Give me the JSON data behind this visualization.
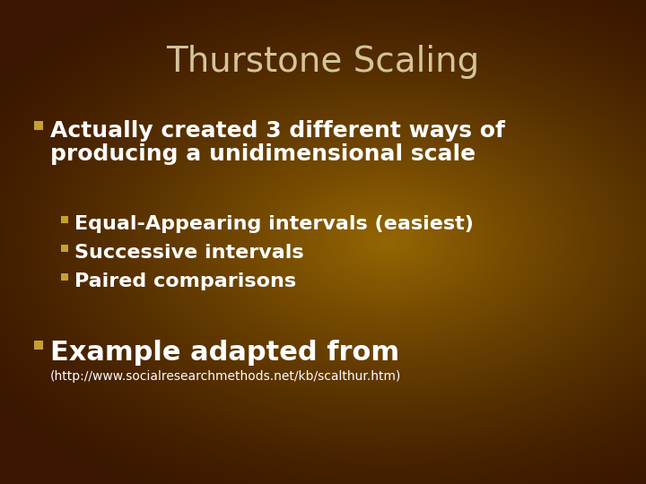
{
  "title": "Thurstone Scaling",
  "title_color": "#D4C49A",
  "title_fontsize": 28,
  "bullet_color": "#C8A030",
  "text_color_white": "#FFFFFF",
  "bullet1_text_line1": "Actually created 3 different ways of",
  "bullet1_text_line2": "producing a unidimensional scale",
  "sub_bullets": [
    "Equal-Appearing intervals (easiest)",
    "Successive intervals",
    "Paired comparisons"
  ],
  "bullet2_main": "Example adapted from",
  "bullet2_sub": "(http://www.socialresearchmethods.net/kb/scalthur.htm)",
  "main_fontsize": 18,
  "sub_fontsize": 16,
  "small_fontsize": 10
}
